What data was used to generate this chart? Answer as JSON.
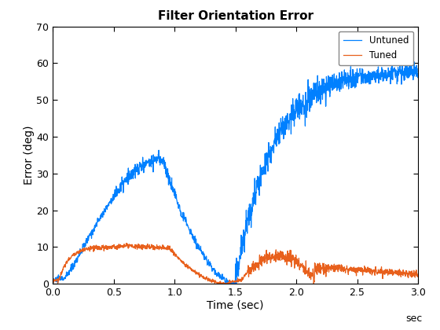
{
  "title": "Filter Orientation Error",
  "xlabel": "Time (sec)",
  "ylabel": "Error (deg)",
  "xlim": [
    0,
    3
  ],
  "ylim": [
    0,
    70
  ],
  "xticks": [
    0,
    0.5,
    1.0,
    1.5,
    2.0,
    2.5,
    3.0
  ],
  "yticks": [
    0,
    10,
    20,
    30,
    40,
    50,
    60,
    70
  ],
  "xlabel_suffix": "sec",
  "untuned_color": "#0080FF",
  "tuned_color": "#E8601C",
  "legend_labels": [
    "Untuned",
    "Tuned"
  ],
  "bg_color": "#FFFFFF",
  "title_fontsize": 11,
  "label_fontsize": 10,
  "tick_fontsize": 9
}
